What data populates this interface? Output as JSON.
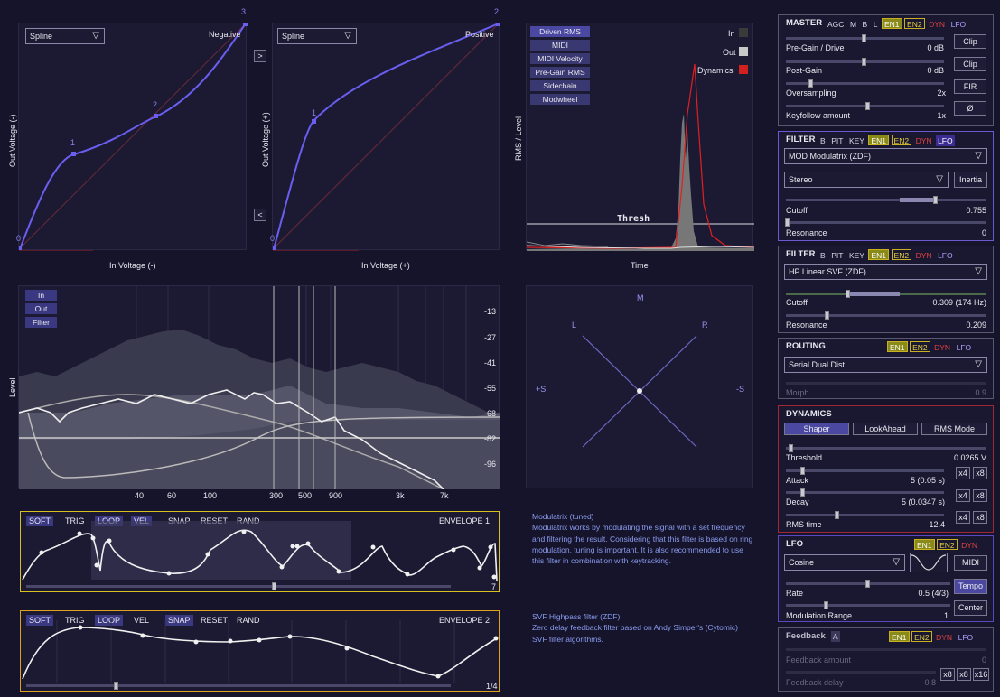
{
  "colors": {
    "accent": "#5a50e0",
    "curve": "#7060ff",
    "red": "#e03030",
    "yellow": "#d8c020"
  },
  "shaper": {
    "neg": {
      "select": "Spline",
      "mode": "Negative",
      "xlabel": "In Voltage (-)",
      "ylabel": "Out Voltage (-)",
      "points": [
        "0",
        "1",
        "2",
        "3"
      ]
    },
    "pos": {
      "select": "Spline",
      "mode": "Positive",
      "xlabel": "In Voltage (+)",
      "ylabel": "Out Voltage (+)",
      "points": [
        "0",
        "1",
        "2"
      ]
    },
    "arrow_right": ">",
    "arrow_left": "<"
  },
  "rms": {
    "sources": [
      "Driven RMS",
      "MIDI",
      "MIDI Velocity",
      "Pre-Gain RMS",
      "Sidechain",
      "Modwheel"
    ],
    "legend": [
      "In",
      "Out",
      "Dynamics"
    ],
    "thresh": "Thresh",
    "xlabel": "Time",
    "ylabel": "RMS / Level"
  },
  "spectrum": {
    "buttons": [
      "In",
      "Out",
      "Filter"
    ],
    "ylabel": "Level",
    "db_ticks": [
      "-13",
      "-27",
      "-41",
      "-55",
      "-68",
      "-82",
      "-96"
    ],
    "freq_ticks": [
      "40",
      "60",
      "100",
      "300",
      "500",
      "900",
      "3k",
      "7k"
    ]
  },
  "vector": {
    "m": "M",
    "l": "L",
    "r": "R",
    "ps": "+S",
    "ms": "-S"
  },
  "env1": {
    "buttons": [
      "SOFT",
      "TRIG",
      "LOOP",
      "VEL",
      "SNAP",
      "RESET",
      "RAND"
    ],
    "title": "ENVELOPE 1",
    "value": "7"
  },
  "env2": {
    "buttons": [
      "SOFT",
      "TRIG",
      "LOOP",
      "VEL",
      "SNAP",
      "RESET",
      "RAND"
    ],
    "title": "ENVELOPE 2",
    "value": "1/4"
  },
  "desc1": {
    "title": "Modulatrix (tuned)",
    "body": "Modulatrix works by modulating the signal with a set frequency and filtering the result. Considering that this filter is based on ring modulation, tuning is important. It is also recommended to use this filter in combination with keytracking."
  },
  "desc2": {
    "title": "SVF Highpass filter (ZDF)",
    "body": "Zero delay feedback filter based on Andy Simper's (Cytomic) SVF filter algorithms."
  },
  "master": {
    "title": "MASTER",
    "chips": [
      "AGC",
      "M",
      "B",
      "L",
      "EN1",
      "EN2",
      "DYN",
      "LFO"
    ],
    "pregain": {
      "label": "Pre-Gain / Drive",
      "value": "0 dB"
    },
    "postgain": {
      "label": "Post-Gain",
      "value": "0 dB"
    },
    "oversampling": {
      "label": "Oversampling",
      "value": "2x"
    },
    "keyfollow": {
      "label": "Keyfollow amount",
      "value": "1x"
    },
    "btns": [
      "Clip",
      "Clip",
      "FIR",
      "Ø"
    ]
  },
  "filter1": {
    "title": "FILTER",
    "chips": [
      "B",
      "PIT",
      "KEY",
      "EN1",
      "EN2",
      "DYN",
      "LFO"
    ],
    "type": "MOD Modulatrix (ZDF)",
    "stereo": "Stereo",
    "inertia": "Inertia",
    "cutoff": {
      "label": "Cutoff",
      "value": "0.755"
    },
    "resonance": {
      "label": "Resonance",
      "value": "0"
    }
  },
  "filter2": {
    "title": "FILTER",
    "chips": [
      "B",
      "PIT",
      "KEY",
      "EN1",
      "EN2",
      "DYN",
      "LFO"
    ],
    "type": "HP Linear SVF (ZDF)",
    "cutoff": {
      "label": "Cutoff",
      "value": "0.309 (174 Hz)"
    },
    "resonance": {
      "label": "Resonance",
      "value": "0.209"
    }
  },
  "routing": {
    "title": "ROUTING",
    "chips": [
      "EN1",
      "EN2",
      "DYN",
      "LFO"
    ],
    "type": "Serial Dual Dist",
    "morph": {
      "label": "Morph",
      "value": "0.9"
    }
  },
  "dynamics": {
    "title": "DYNAMICS",
    "modes": [
      "Shaper",
      "LookAhead",
      "RMS Mode"
    ],
    "threshold": {
      "label": "Threshold",
      "value": "0.0265 V"
    },
    "attack": {
      "label": "Attack",
      "value": "5 (0.05 s)"
    },
    "decay": {
      "label": "Decay",
      "value": "5 (0.0347 s)"
    },
    "rms": {
      "label": "RMS time",
      "value": "12.4"
    },
    "mult": [
      "x4",
      "x8"
    ]
  },
  "lfo": {
    "title": "LFO",
    "chips": [
      "EN1",
      "EN2",
      "DYN"
    ],
    "wave": "Cosine",
    "midi": "MIDI",
    "tempo": "Tempo",
    "center": "Center",
    "rate": {
      "label": "Rate",
      "value": "0.5 (4/3)"
    },
    "range": {
      "label": "Modulation Range",
      "value": "1"
    }
  },
  "feedback": {
    "title": "Feedback",
    "chips": [
      "A",
      "EN1",
      "EN2",
      "DYN",
      "LFO"
    ],
    "amount": {
      "label": "Feedback amount",
      "value": "0"
    },
    "delay": {
      "label": "Feedback delay",
      "value": "0.8"
    },
    "mult": [
      "x8",
      "x8",
      "x16"
    ]
  }
}
